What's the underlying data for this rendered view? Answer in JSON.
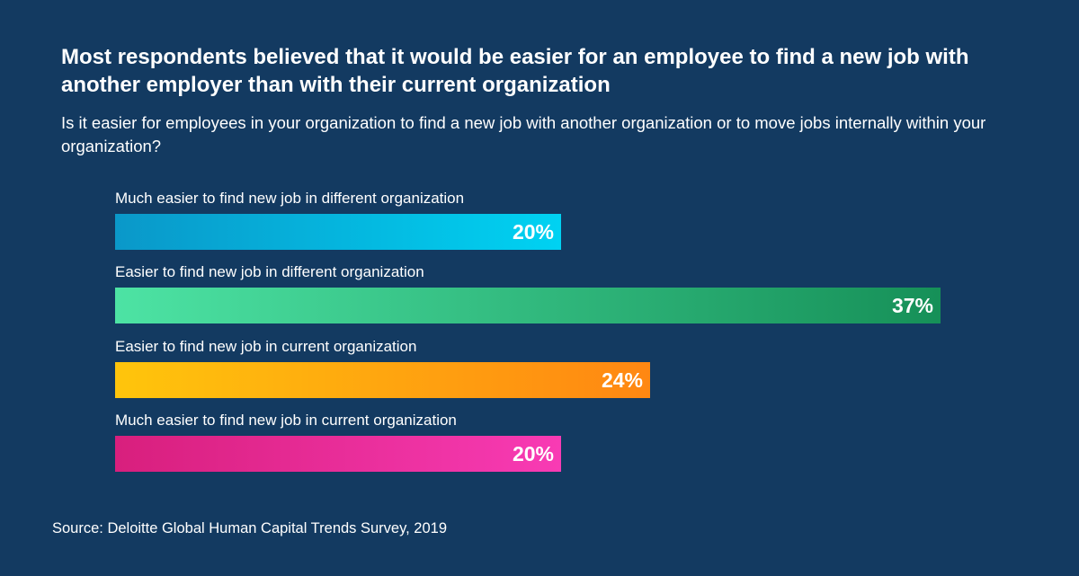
{
  "chart_data": {
    "type": "bar",
    "orientation": "horizontal",
    "title": "Most respondents believed that it would be easier for an employee to find a new job with another employer than with their current organization",
    "subtitle": "Is it easier for employees in your organization to find a new job with another organization or to move jobs internally within your organization?",
    "categories": [
      "Much easier to find new job in different organization",
      "Easier to find new job in different organization",
      "Easier to find new job in current organization",
      "Much easier to find new job in current organization"
    ],
    "values": [
      20,
      37,
      24,
      20
    ],
    "value_labels": [
      "20%",
      "37%",
      "24%",
      "20%"
    ],
    "unit": "%",
    "xlim": [
      0,
      37
    ],
    "grid": false,
    "legend": "none",
    "colors": [
      [
        "#0a98c9",
        "#00d2f2"
      ],
      [
        "#4de3a4",
        "#169058"
      ],
      [
        "#ffc50c",
        "#ff8712"
      ],
      [
        "#d81f7d",
        "#f83bb4"
      ]
    ]
  },
  "source": "Source: Deloitte Global Human Capital Trends Survey, 2019"
}
